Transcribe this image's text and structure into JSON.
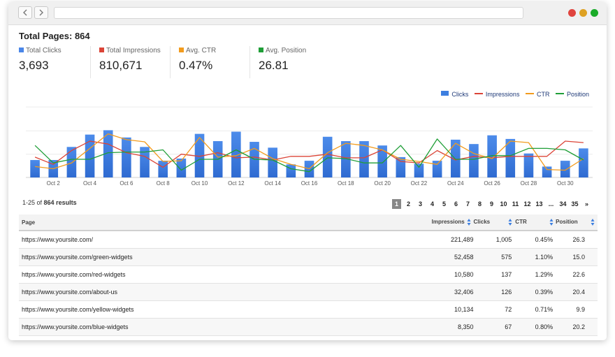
{
  "browser": {
    "back_icon": "chevron-left-icon",
    "forward_icon": "chevron-right-icon",
    "window_controls": [
      "#e0443e",
      "#dea123",
      "#1aab29"
    ]
  },
  "summary": {
    "title": "Total Pages: 864",
    "metrics": [
      {
        "label": "Total Clicks",
        "value": "3,693",
        "color": "#4a86e8"
      },
      {
        "label": "Total Impressions",
        "value": "810,671",
        "color": "#db4437"
      },
      {
        "label": "Avg. CTR",
        "value": "0.47%",
        "color": "#f29b1d"
      },
      {
        "label": "Avg. Position",
        "value": "26.81",
        "color": "#1f9e37"
      }
    ]
  },
  "chart_data": {
    "type": "bar",
    "categories": [
      "Oct 1",
      "Oct 2",
      "Oct 3",
      "Oct 4",
      "Oct 5",
      "Oct 6",
      "Oct 7",
      "Oct 8",
      "Oct 9",
      "Oct 10",
      "Oct 11",
      "Oct 12",
      "Oct 13",
      "Oct 14",
      "Oct 15",
      "Oct 16",
      "Oct 17",
      "Oct 18",
      "Oct 19",
      "Oct 20",
      "Oct 21",
      "Oct 22",
      "Oct 23",
      "Oct 24",
      "Oct 25",
      "Oct 26",
      "Oct 27",
      "Oct 28",
      "Oct 29",
      "Oct 30",
      "Oct 31"
    ],
    "tick_labels": [
      "Oct 2",
      "Oct 4",
      "Oct 6",
      "Oct 8",
      "Oct 10",
      "Oct 12",
      "Oct 14",
      "Oct 16",
      "Oct 18",
      "Oct 20",
      "Oct 22",
      "Oct 24",
      "Oct 26",
      "Oct 28",
      "Oct 30"
    ],
    "legend": [
      "Clicks",
      "Impressions",
      "CTR",
      "Position"
    ],
    "colors": {
      "Clicks": "#3d7fe0",
      "Impressions": "#db4437",
      "CTR": "#f29b1d",
      "Position": "#1f9e37"
    },
    "ylim": [
      0,
      100
    ],
    "series": [
      {
        "name": "Clicks",
        "type": "bar",
        "values": [
          24,
          24,
          42,
          59,
          65,
          55,
          42,
          23,
          26,
          60,
          50,
          63,
          49,
          41,
          18,
          23,
          56,
          50,
          50,
          44,
          28,
          19,
          23,
          52,
          46,
          58,
          53,
          33,
          15,
          23,
          40
        ]
      },
      {
        "name": "Impressions",
        "type": "line",
        "values": [
          28,
          18,
          37,
          50,
          46,
          34,
          29,
          14,
          32,
          29,
          34,
          27,
          28,
          24,
          29,
          29,
          32,
          27,
          27,
          38,
          22,
          20,
          37,
          24,
          29,
          27,
          29,
          29,
          29,
          50,
          48
        ]
      },
      {
        "name": "CTR",
        "type": "line",
        "values": [
          15,
          12,
          20,
          40,
          60,
          52,
          49,
          22,
          23,
          55,
          28,
          30,
          40,
          26,
          18,
          12,
          34,
          47,
          44,
          38,
          25,
          22,
          18,
          47,
          33,
          26,
          50,
          48,
          11,
          10,
          26
        ]
      },
      {
        "name": "Position",
        "type": "line",
        "values": [
          44,
          20,
          25,
          25,
          34,
          35,
          35,
          38,
          10,
          25,
          25,
          38,
          25,
          24,
          12,
          8,
          27,
          26,
          20,
          20,
          44,
          14,
          53,
          25,
          25,
          30,
          30,
          40,
          40,
          38,
          24
        ]
      }
    ]
  },
  "results": {
    "range_text": "1-25 of",
    "total": "864",
    "suffix": "results",
    "pages": [
      "1",
      "2",
      "3",
      "4",
      "5",
      "6",
      "7",
      "8",
      "9",
      "10",
      "11",
      "12",
      "13",
      "...",
      "34",
      "35",
      "»"
    ],
    "current_page": "1"
  },
  "table": {
    "headers": [
      "Page",
      "Impressions",
      "Clicks",
      "CTR",
      "Position"
    ],
    "rows": [
      {
        "page": "https://www.yoursite.com/",
        "impressions": "221,489",
        "clicks": "1,005",
        "ctr": "0.45%",
        "position": "26.3"
      },
      {
        "page": "https://www.yoursite.com/green-widgets",
        "impressions": "52,458",
        "clicks": "575",
        "ctr": "1.10%",
        "position": "15.0"
      },
      {
        "page": "https://www.yoursite.com/red-widgets",
        "impressions": "10,580",
        "clicks": "137",
        "ctr": "1.29%",
        "position": "22.6"
      },
      {
        "page": "https://www.yoursite.com/about-us",
        "impressions": "32,406",
        "clicks": "126",
        "ctr": "0.39%",
        "position": "20.4"
      },
      {
        "page": "https://www.yoursite.com/yellow-widgets",
        "impressions": "10,134",
        "clicks": "72",
        "ctr": "0.71%",
        "position": "9.9"
      },
      {
        "page": "https://www.yoursite.com/blue-widgets",
        "impressions": "8,350",
        "clicks": "67",
        "ctr": "0.80%",
        "position": "20.2"
      }
    ]
  }
}
